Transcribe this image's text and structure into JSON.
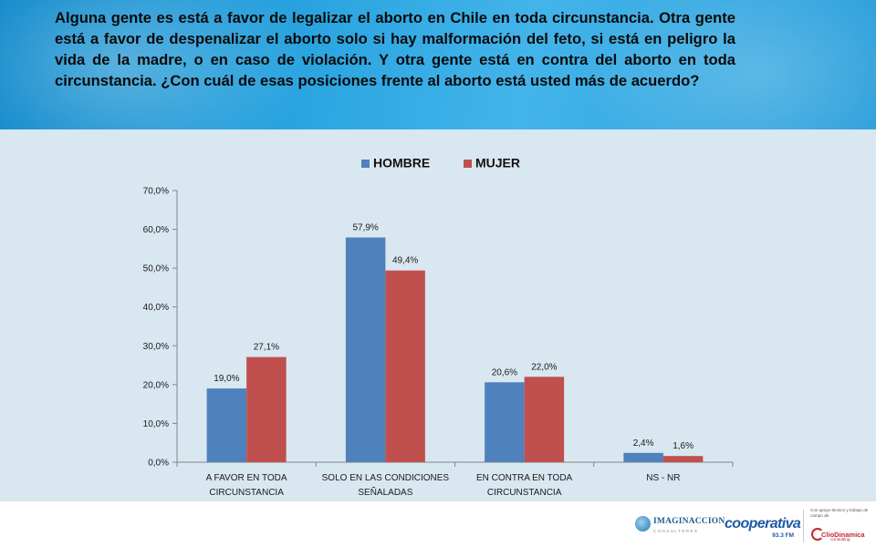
{
  "header": {
    "question": "Alguna gente es está a favor de legalizar el aborto en Chile en toda circunstancia. Otra gente está a favor de despenalizar el aborto solo si hay malformación del feto, si está en peligro la vida de la madre, o en caso de violación. Y otra gente está en contra del aborto en toda circunstancia. ¿Con cuál de esas posiciones frente al aborto está usted más de acuerdo?"
  },
  "chart_data": {
    "type": "bar",
    "categories": [
      [
        "A FAVOR EN TODA",
        "CIRCUNSTANCIA"
      ],
      [
        "SOLO EN LAS CONDICIONES",
        "SEÑALADAS"
      ],
      [
        "EN CONTRA EN TODA",
        "CIRCUNSTANCIA"
      ],
      [
        "NS - NR"
      ]
    ],
    "series": [
      {
        "name": "HOMBRE",
        "color": "#4f81bd",
        "values": [
          19.0,
          57.9,
          20.6,
          2.4
        ],
        "labels": [
          "19,0%",
          "57,9%",
          "20,6%",
          "2,4%"
        ]
      },
      {
        "name": "MUJER",
        "color": "#c0504d",
        "values": [
          27.1,
          49.4,
          22.0,
          1.6
        ],
        "labels": [
          "27,1%",
          "49,4%",
          "22,0%",
          "1,6%"
        ]
      }
    ],
    "ylim": [
      0,
      70
    ],
    "yticks": [
      0,
      10,
      20,
      30,
      40,
      50,
      60,
      70
    ],
    "ytick_labels": [
      "0,0%",
      "10,0%",
      "20,0%",
      "30,0%",
      "40,0%",
      "50,0%",
      "60,0%",
      "70,0%"
    ],
    "legend_position": "top-center",
    "grid": false,
    "title": "",
    "xlabel": "",
    "ylabel": ""
  },
  "logos": {
    "imaginaccion": {
      "name": "IMAGINACCION",
      "sub": "CONSULTORES"
    },
    "cooperativa": {
      "name": "cooperativa",
      "fm": "93.3 FM"
    },
    "cliodinamica": {
      "apoyo": "Con apoyo técnico y trabajo de campo de",
      "name": "ClioDinamica",
      "sub": "consulting"
    }
  },
  "colors": {
    "header_blue": "#2aa4e0",
    "chart_background": "#d9e7f1",
    "hombre": "#4f81bd",
    "mujer": "#c0504d"
  }
}
